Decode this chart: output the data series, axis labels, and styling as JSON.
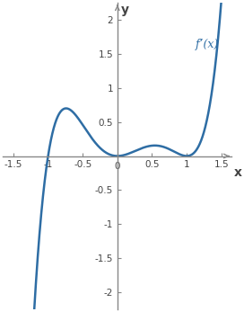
{
  "xlim": [
    -1.65,
    1.65
  ],
  "ylim": [
    -2.25,
    2.25
  ],
  "xticks": [
    -1.5,
    -1.0,
    -0.5,
    0.0,
    0.5,
    1.0,
    1.5
  ],
  "yticks": [
    -2.0,
    -1.5,
    -1.0,
    -0.5,
    0.5,
    1.0,
    1.5,
    2.0
  ],
  "xtick_labels": [
    "-1.5",
    "-1",
    "-0.5",
    "0",
    "0.5",
    "1",
    "1.5"
  ],
  "ytick_labels": [
    "-2",
    "-1.5",
    "-1",
    "-0.5",
    "0.5",
    "1",
    "1.5",
    "2"
  ],
  "xlabel": "x",
  "ylabel": "y",
  "curve_label": "f’(x)",
  "curve_color": "#2e6da4",
  "axis_color": "#888888",
  "tick_color": "#444444",
  "label_color": "#2e6da4",
  "x_start": -1.58,
  "x_end": 1.5,
  "scale": 1.62,
  "figsize": [
    2.72,
    3.47
  ],
  "dpi": 100
}
